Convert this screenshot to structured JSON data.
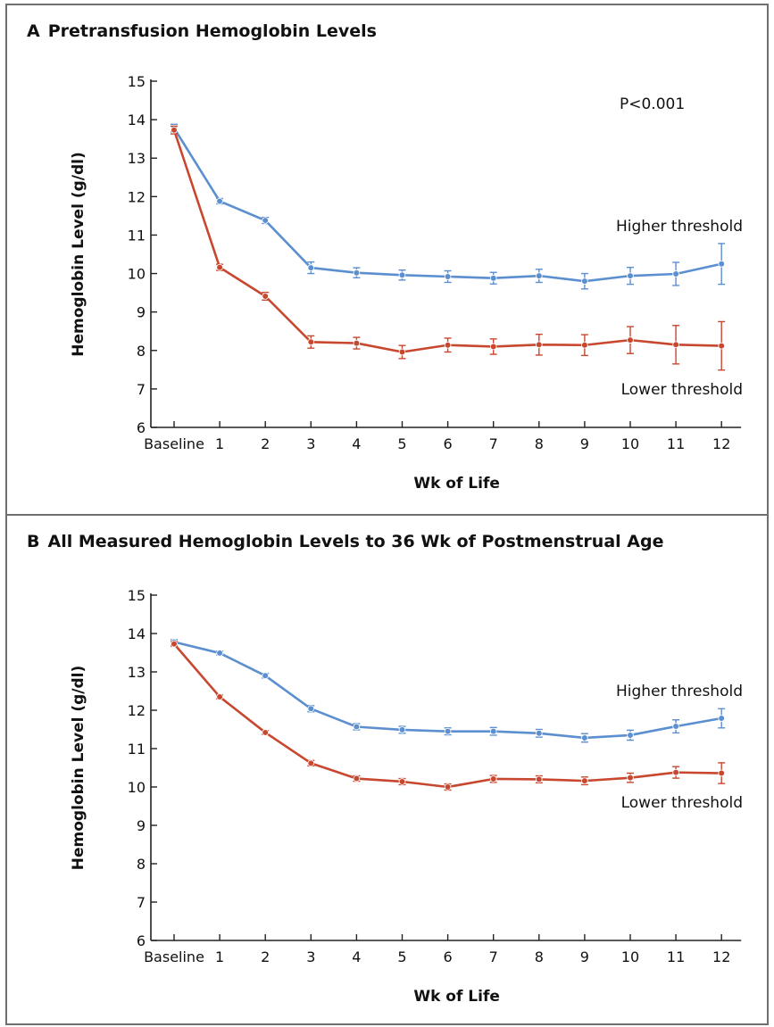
{
  "colors": {
    "higher": "#5b8fd0",
    "lower": "#c8472f",
    "axis": "#222222"
  },
  "chart_data": [
    {
      "type": "line",
      "letter": "A",
      "title": "Pretransfusion Hemoglobin Levels",
      "xlabel": "Wk of Life",
      "ylabel": "Hemoglobin Level (g/dl)",
      "categories": [
        "Baseline",
        "1",
        "2",
        "3",
        "4",
        "5",
        "6",
        "7",
        "8",
        "9",
        "10",
        "11",
        "12"
      ],
      "ylim": [
        6,
        15
      ],
      "yticks": [
        "6",
        "7",
        "8",
        "9",
        "10",
        "11",
        "12",
        "13",
        "14",
        "15"
      ],
      "annotation": "P<0.001",
      "series": [
        {
          "name": "Higher threshold",
          "color": "#5b8fd0",
          "values": [
            13.78,
            11.88,
            11.38,
            10.15,
            10.02,
            9.96,
            9.92,
            9.88,
            9.94,
            9.8,
            9.94,
            9.99,
            10.25
          ],
          "errors": [
            0.1,
            0.07,
            0.08,
            0.15,
            0.13,
            0.13,
            0.15,
            0.15,
            0.17,
            0.2,
            0.22,
            0.3,
            0.53
          ]
        },
        {
          "name": "Lower threshold",
          "color": "#c8472f",
          "values": [
            13.73,
            10.16,
            9.41,
            8.22,
            8.19,
            7.96,
            8.14,
            8.1,
            8.15,
            8.14,
            8.27,
            8.15,
            8.12
          ],
          "errors": [
            0.1,
            0.08,
            0.1,
            0.16,
            0.15,
            0.17,
            0.18,
            0.2,
            0.27,
            0.27,
            0.35,
            0.5,
            0.63
          ]
        }
      ]
    },
    {
      "type": "line",
      "letter": "B",
      "title": "All Measured Hemoglobin Levels to 36 Wk of Postmenstrual Age",
      "xlabel": "Wk of Life",
      "ylabel": "Hemoglobin Level (g/dl)",
      "categories": [
        "Baseline",
        "1",
        "2",
        "3",
        "4",
        "5",
        "6",
        "7",
        "8",
        "9",
        "10",
        "11",
        "12"
      ],
      "ylim": [
        6,
        15
      ],
      "yticks": [
        "6",
        "7",
        "8",
        "9",
        "10",
        "11",
        "12",
        "13",
        "14",
        "15"
      ],
      "annotation": "",
      "series": [
        {
          "name": "Higher threshold",
          "color": "#5b8fd0",
          "values": [
            13.78,
            13.49,
            12.9,
            12.04,
            11.57,
            11.49,
            11.45,
            11.45,
            11.4,
            11.28,
            11.35,
            11.58,
            11.79
          ],
          "errors": [
            0.06,
            0.05,
            0.06,
            0.08,
            0.08,
            0.09,
            0.09,
            0.1,
            0.1,
            0.11,
            0.13,
            0.17,
            0.25
          ]
        },
        {
          "name": "Lower threshold",
          "color": "#c8472f",
          "values": [
            13.73,
            12.35,
            11.42,
            10.62,
            10.22,
            10.14,
            10.0,
            10.21,
            10.2,
            10.16,
            10.24,
            10.38,
            10.36
          ],
          "errors": [
            0.06,
            0.05,
            0.05,
            0.07,
            0.07,
            0.08,
            0.08,
            0.09,
            0.09,
            0.1,
            0.12,
            0.15,
            0.27
          ]
        }
      ]
    }
  ]
}
